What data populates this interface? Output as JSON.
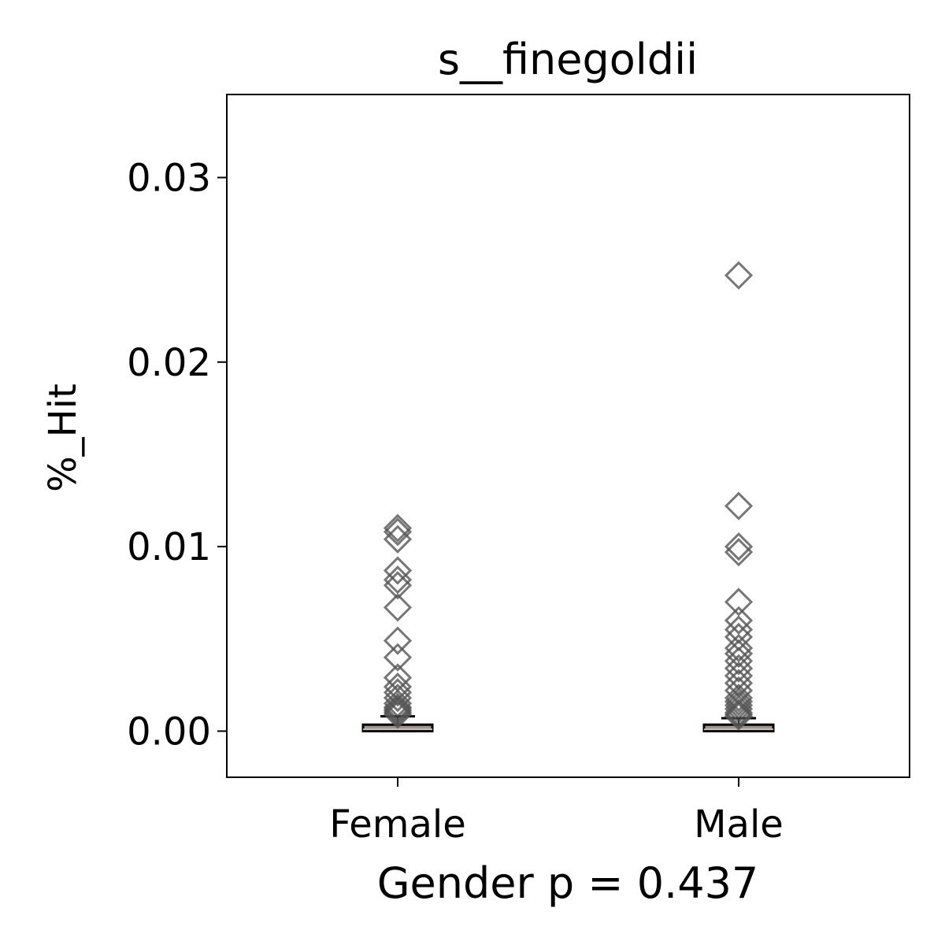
{
  "chart_data": {
    "type": "box",
    "title": "s__finegoldii",
    "xlabel": "Gender p = 0.437",
    "ylabel": "%_Hit",
    "categories": [
      "Female",
      "Male"
    ],
    "ylim": [
      -0.0025,
      0.0345
    ],
    "yticks": [
      0.0,
      0.01,
      0.02,
      0.03
    ],
    "ytick_labels": [
      "0.00",
      "0.01",
      "0.02",
      "0.03"
    ],
    "grid": false,
    "legend": "none",
    "colors": {
      "box_fill": "#9e9590",
      "outlier": "#555555",
      "axes": "#000000"
    },
    "boxes": [
      {
        "category": "Female",
        "whislo": 0.0,
        "q1": 0.0,
        "median": 0.0001,
        "q3": 0.00035,
        "whishi": 0.0008,
        "outliers": [
          0.011,
          0.0108,
          0.0104,
          0.0087,
          0.0082,
          0.0079,
          0.0067,
          0.0049,
          0.004,
          0.0029,
          0.0024,
          0.0021,
          0.0018,
          0.0015,
          0.0013,
          0.0012,
          0.0011,
          0.001,
          0.0009
        ]
      },
      {
        "category": "Male",
        "whislo": 0.0,
        "q1": 0.0,
        "median": 0.0001,
        "q3": 0.00035,
        "whishi": 0.0007,
        "outliers": [
          0.0247,
          0.0122,
          0.01,
          0.0097,
          0.007,
          0.006,
          0.0055,
          0.0051,
          0.0045,
          0.0042,
          0.0038,
          0.0034,
          0.003,
          0.0026,
          0.0022,
          0.0018,
          0.0016,
          0.0014,
          0.0012,
          0.001,
          0.0009,
          0.0008
        ]
      }
    ]
  }
}
